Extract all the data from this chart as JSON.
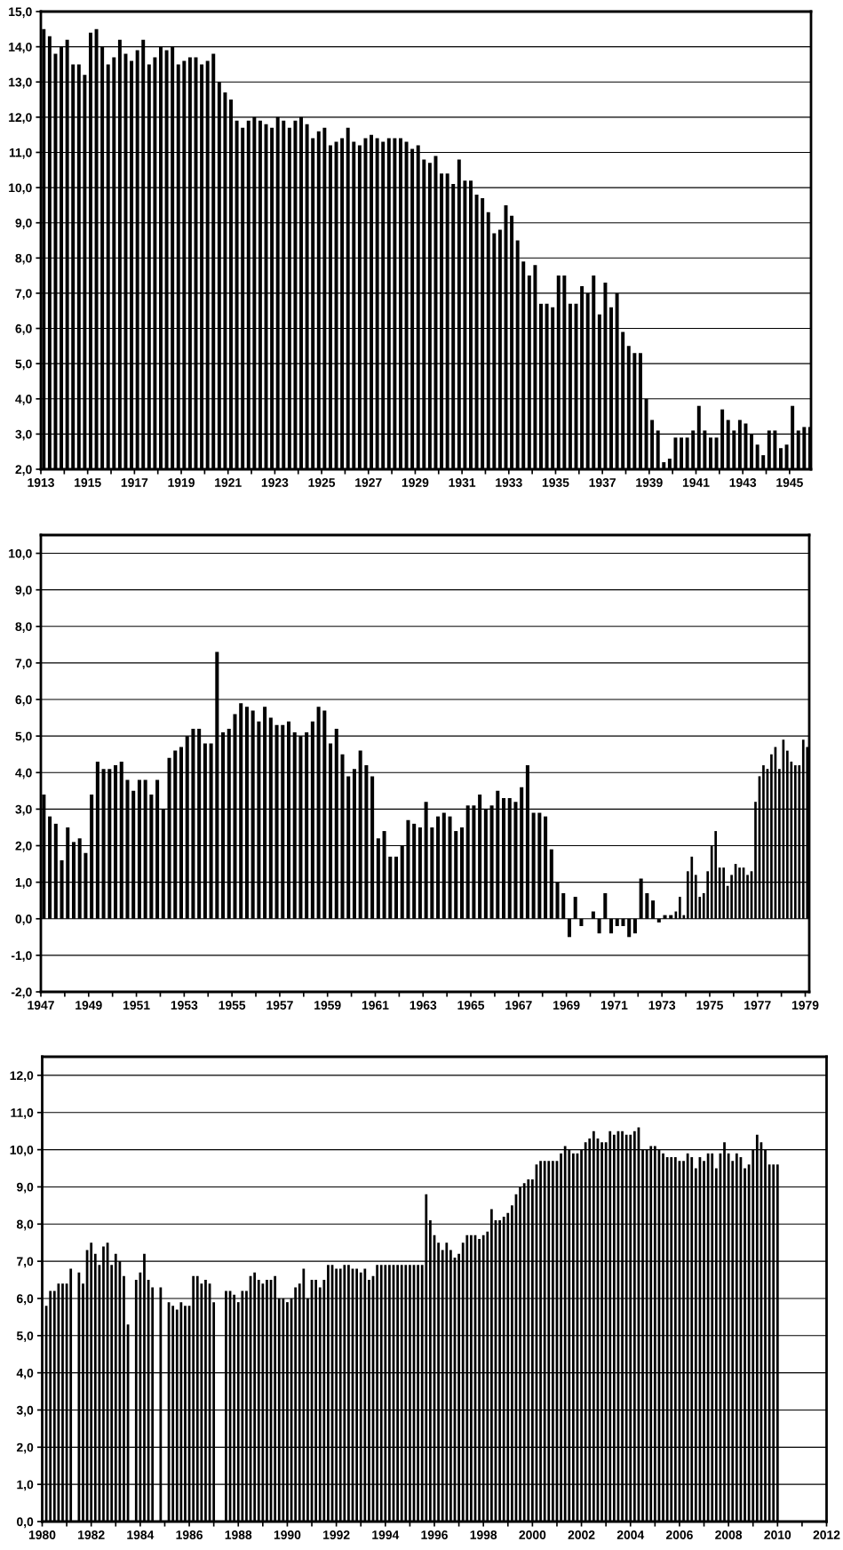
{
  "chart_data": [
    {
      "type": "bar",
      "grid": "y",
      "xlim": [
        "1913",
        "1945-12"
      ],
      "ylim": [
        2,
        15
      ],
      "xticks": [
        "1913",
        {
          "value": "1914",
          "label": null
        },
        "1915",
        {
          "value": "1916",
          "label": null
        },
        "1917",
        {
          "value": "1918",
          "label": null
        },
        "1919",
        {
          "value": "1920",
          "label": null
        },
        "1921",
        {
          "value": "1922",
          "label": null
        },
        "1923",
        {
          "value": "1924",
          "label": null
        },
        "1925",
        {
          "value": "1926",
          "label": null
        },
        "1927",
        {
          "value": "1928",
          "label": null
        },
        "1929",
        {
          "value": "1930",
          "label": null
        },
        "1931",
        {
          "value": "1932",
          "label": null
        },
        "1933",
        {
          "value": "1934",
          "label": null
        },
        "1935",
        {
          "value": "1936",
          "label": null
        },
        "1937",
        {
          "value": "1938",
          "label": null
        },
        "1939",
        {
          "value": "1940",
          "label": null
        },
        "1941",
        {
          "value": "1942",
          "label": null
        },
        "1943",
        {
          "value": "1944",
          "label": null
        },
        "1945"
      ],
      "yticks": [
        {
          "value": 2,
          "label": "2,0"
        },
        {
          "value": 3,
          "label": "3,0"
        },
        {
          "value": 4,
          "label": "4,0"
        },
        {
          "value": 5,
          "label": "5,0"
        },
        {
          "value": 6,
          "label": "6,0"
        },
        {
          "value": 7,
          "label": "7,0"
        },
        {
          "value": 8,
          "label": "8,0"
        },
        {
          "value": 9,
          "label": "9,0"
        },
        {
          "value": 10,
          "label": "10,0"
        },
        {
          "value": 11,
          "label": "11,0"
        },
        {
          "value": 12,
          "label": "12,0"
        },
        {
          "value": 13,
          "label": "13,0"
        },
        {
          "value": 14,
          "label": "14,0"
        },
        {
          "value": 15,
          "label": "15,0"
        }
      ],
      "series": [
        {
          "color": "#000000",
          "x": [
            "1913-01",
            "1913-04",
            "1913-07",
            "1913-10",
            "1914-01",
            "1914-04",
            "1914-07",
            "1914-10",
            "1915-01",
            "1915-04",
            "1915-07",
            "1915-10",
            "1916-01",
            "1916-04",
            "1916-07",
            "1916-10",
            "1917-01",
            "1917-04",
            "1917-07",
            "1917-10",
            "1918-01",
            "1918-04",
            "1918-07",
            "1918-10",
            "1919-01",
            "1919-04",
            "1919-07",
            "1919-10",
            "1920-01",
            "1920-04",
            "1920-07",
            "1920-10",
            "1921-01",
            "1921-04",
            "1921-07",
            "1921-10",
            "1922-01",
            "1922-04",
            "1922-07",
            "1922-10",
            "1923-01",
            "1923-04",
            "1923-07",
            "1923-10",
            "1924-01",
            "1924-04",
            "1924-07",
            "1924-10",
            "1925-01",
            "1925-04",
            "1925-07",
            "1925-10",
            "1926-01",
            "1926-04",
            "1926-07",
            "1926-10",
            "1927-01",
            "1927-04",
            "1927-07",
            "1927-10",
            "1928-01",
            "1928-04",
            "1928-07",
            "1928-10",
            "1929-01",
            "1929-04",
            "1929-07",
            "1929-10",
            "1930-01",
            "1930-04",
            "1930-07",
            "1930-10",
            "1931-01",
            "1931-04",
            "1931-07",
            "1931-10",
            "1932-01",
            "1932-04",
            "1932-07",
            "1932-10",
            "1933-01",
            "1933-04",
            "1933-07",
            "1933-10",
            "1934-01",
            "1934-04",
            "1934-07",
            "1934-10",
            "1935-01",
            "1935-04",
            "1935-07",
            "1935-10",
            "1936-01",
            "1936-04",
            "1936-07",
            "1936-10",
            "1937-01",
            "1937-04",
            "1937-07",
            "1937-10",
            "1938-01",
            "1938-04",
            "1938-07",
            "1938-10",
            "1939-01",
            "1939-04",
            "1939-07",
            "1939-10",
            "1940-01",
            "1940-04",
            "1940-07",
            "1940-10",
            "1941-01",
            "1941-04",
            "1941-07",
            "1941-10",
            "1942-01",
            "1942-04",
            "1942-07",
            "1942-10",
            "1943-01",
            "1943-04",
            "1943-07",
            "1943-10",
            "1944-01",
            "1944-04",
            "1944-07",
            "1944-10",
            "1945-01",
            "1945-04",
            "1945-07",
            "1945-10"
          ],
          "values": [
            14.5,
            14.3,
            13.8,
            14.0,
            14.2,
            13.5,
            13.5,
            13.2,
            14.4,
            14.5,
            14.0,
            13.5,
            13.7,
            14.2,
            13.8,
            13.6,
            13.9,
            14.2,
            13.5,
            13.7,
            14.0,
            13.9,
            14.0,
            13.5,
            13.6,
            13.7,
            13.7,
            13.5,
            13.6,
            13.8,
            13.0,
            12.7,
            12.5,
            11.9,
            11.7,
            11.9,
            12.0,
            11.9,
            11.8,
            11.7,
            12.0,
            11.9,
            11.7,
            11.9,
            12.0,
            11.8,
            11.4,
            11.6,
            11.7,
            11.2,
            11.3,
            11.4,
            11.7,
            11.3,
            11.2,
            11.4,
            11.5,
            11.4,
            11.3,
            11.4,
            11.4,
            11.4,
            11.3,
            11.1,
            11.2,
            10.8,
            10.7,
            10.9,
            10.4,
            10.4,
            10.1,
            10.8,
            10.2,
            10.2,
            9.8,
            9.7,
            9.3,
            8.7,
            8.8,
            9.5,
            9.2,
            8.5,
            7.9,
            7.5,
            7.8,
            6.7,
            6.7,
            6.6,
            7.5,
            7.5,
            6.7,
            6.7,
            7.2,
            7.0,
            7.5,
            6.4,
            7.3,
            6.6,
            7.0,
            5.9,
            5.5,
            5.3,
            5.3,
            4.0,
            3.4,
            3.1,
            2.2,
            2.3,
            2.9,
            2.9,
            2.9,
            3.1,
            3.8,
            3.1,
            2.9,
            2.9,
            3.7,
            3.4,
            3.1,
            3.4,
            3.3,
            3.0,
            2.7,
            2.4,
            3.1,
            3.1,
            2.6,
            2.7,
            3.8,
            3.1,
            3.2,
            3.2
          ]
        }
      ]
    },
    {
      "type": "bar",
      "grid": "y",
      "xlim": [
        "1947",
        "1979-03"
      ],
      "ylim": [
        -2,
        10.5
      ],
      "xticks": [
        "1947",
        {
          "value": "1948",
          "label": null
        },
        "1949",
        {
          "value": "1950",
          "label": null
        },
        "1951",
        {
          "value": "1952",
          "label": null
        },
        "1953",
        {
          "value": "1954",
          "label": null
        },
        "1955",
        {
          "value": "1956",
          "label": null
        },
        "1957",
        {
          "value": "1958",
          "label": null
        },
        "1959",
        {
          "value": "1960",
          "label": null
        },
        "1961",
        {
          "value": "1962",
          "label": null
        },
        "1963",
        {
          "value": "1964",
          "label": null
        },
        "1965",
        {
          "value": "1966",
          "label": null
        },
        "1967",
        {
          "value": "1968",
          "label": null
        },
        "1969",
        {
          "value": "1970",
          "label": null
        },
        "1971",
        {
          "value": "1972",
          "label": null
        },
        "1973",
        {
          "value": "1974",
          "label": null
        },
        "1975",
        {
          "value": "1976",
          "label": null
        },
        "1977",
        {
          "value": "1978",
          "label": null
        },
        "1979"
      ],
      "yticks": [
        {
          "value": -2,
          "label": "-2,0"
        },
        {
          "value": -1,
          "label": "-1,0"
        },
        {
          "value": 0,
          "label": "0,0"
        },
        {
          "value": 1,
          "label": "1,0"
        },
        {
          "value": 2,
          "label": "2,0"
        },
        {
          "value": 3,
          "label": "3,0"
        },
        {
          "value": 4,
          "label": "4,0"
        },
        {
          "value": 5,
          "label": "5,0"
        },
        {
          "value": 6,
          "label": "6,0"
        },
        {
          "value": 7,
          "label": "7,0"
        },
        {
          "value": 8,
          "label": "8,0"
        },
        {
          "value": 9,
          "label": "9,0"
        },
        {
          "value": 10,
          "label": "10,0"
        }
      ],
      "series": [
        {
          "color": "#000000",
          "x": [
            "1947-01",
            "1947-04",
            "1947-07",
            "1947-10",
            "1948-01",
            "1948-04",
            "1948-07",
            "1948-10",
            "1949-01",
            "1949-04",
            "1949-07",
            "1949-10",
            "1950-01",
            "1950-04",
            "1950-07",
            "1950-10",
            "1951-01",
            "1951-04",
            "1951-07",
            "1951-10",
            "1952-01",
            "1952-04",
            "1952-07",
            "1952-10",
            "1953-01",
            "1953-04",
            "1953-07",
            "1953-10",
            "1954-01",
            "1954-04",
            "1954-07",
            "1954-10",
            "1955-01",
            "1955-04",
            "1955-07",
            "1955-10",
            "1956-01",
            "1956-04",
            "1956-07",
            "1956-10",
            "1957-01",
            "1957-04",
            "1957-07",
            "1957-10",
            "1958-01",
            "1958-04",
            "1958-07",
            "1958-10",
            "1959-01",
            "1959-04",
            "1959-07",
            "1959-10",
            "1960-01",
            "1960-04",
            "1960-07",
            "1960-10",
            "1961-01",
            "1961-04",
            "1961-07",
            "1961-10",
            "1962-01",
            "1962-04",
            "1962-07",
            "1962-10",
            "1963-01",
            "1963-04",
            "1963-07",
            "1963-10",
            "1964-01",
            "1964-04",
            "1964-07",
            "1964-10",
            "1965-01",
            "1965-04",
            "1965-07",
            "1965-10",
            "1966-01",
            "1966-04",
            "1966-07",
            "1966-10",
            "1967-01",
            "1967-04",
            "1967-07",
            "1967-10",
            "1968-01",
            "1968-04",
            "1968-07",
            "1968-10",
            "1969-01",
            "1969-04",
            "1969-07",
            "1969-10",
            "1970-01",
            "1970-04",
            "1970-07",
            "1970-10",
            "1971-01",
            "1971-04",
            "1971-07",
            "1971-10",
            "1972-01",
            "1972-04",
            "1972-07",
            "1972-10",
            "1973-01",
            "1973-04",
            "1973-07",
            "1973-09",
            "1973-11",
            "1974-01",
            "1974-03",
            "1974-05",
            "1974-07",
            "1974-09",
            "1974-11",
            "1975-01",
            "1975-03",
            "1975-05",
            "1975-07",
            "1975-09",
            "1975-11",
            "1976-01",
            "1976-03",
            "1976-05",
            "1976-07",
            "1976-09",
            "1976-11",
            "1977-01",
            "1977-03",
            "1977-05",
            "1977-07",
            "1977-09",
            "1977-11",
            "1978-01",
            "1978-03",
            "1978-05",
            "1978-07",
            "1978-09",
            "1978-11",
            "1979-01"
          ],
          "values": [
            3.4,
            2.8,
            2.6,
            1.6,
            2.5,
            2.1,
            2.2,
            1.8,
            3.4,
            4.3,
            4.1,
            4.1,
            4.2,
            4.3,
            3.8,
            3.5,
            3.8,
            3.8,
            3.4,
            3.8,
            3.0,
            4.4,
            4.6,
            4.7,
            5.0,
            5.2,
            5.2,
            4.8,
            4.8,
            7.3,
            5.1,
            5.2,
            5.6,
            5.9,
            5.8,
            5.7,
            5.4,
            5.8,
            5.5,
            5.3,
            5.3,
            5.4,
            5.1,
            5.0,
            5.1,
            5.4,
            5.8,
            5.7,
            4.8,
            5.2,
            4.5,
            3.9,
            4.1,
            4.6,
            4.2,
            3.9,
            2.2,
            2.4,
            1.7,
            1.7,
            2.0,
            2.7,
            2.6,
            2.5,
            3.2,
            2.5,
            2.8,
            2.9,
            2.8,
            2.4,
            2.5,
            3.1,
            3.1,
            3.4,
            3.0,
            3.1,
            3.5,
            3.3,
            3.3,
            3.2,
            3.6,
            4.2,
            2.9,
            2.9,
            2.8,
            1.9,
            1.0,
            0.7,
            -0.5,
            0.6,
            -0.2,
            0.0,
            0.2,
            -0.4,
            0.7,
            -0.4,
            -0.2,
            -0.2,
            -0.5,
            -0.4,
            1.1,
            0.7,
            0.5,
            -0.1,
            0.1,
            0.1,
            0.2,
            0.6,
            0.1,
            1.3,
            1.7,
            1.2,
            0.6,
            0.7,
            1.3,
            2.0,
            2.4,
            1.4,
            1.4,
            0.9,
            1.2,
            1.5,
            1.4,
            1.4,
            1.2,
            1.3,
            3.2,
            3.9,
            4.2,
            4.1,
            4.5,
            4.7,
            4.1,
            4.9,
            4.6,
            4.3,
            4.2,
            4.2,
            4.9,
            4.7
          ]
        }
      ]
    },
    {
      "type": "bar",
      "grid": "y",
      "xlim": [
        "1980",
        "2012"
      ],
      "ylim": [
        0,
        12.5
      ],
      "xticks": [
        "1980",
        {
          "value": "1981",
          "label": null
        },
        "1982",
        {
          "value": "1983",
          "label": null
        },
        "1984",
        {
          "value": "1985",
          "label": null
        },
        "1986",
        {
          "value": "1987",
          "label": null
        },
        "1988",
        {
          "value": "1989",
          "label": null
        },
        "1990",
        {
          "value": "1991",
          "label": null
        },
        "1992",
        {
          "value": "1993",
          "label": null
        },
        "1994",
        {
          "value": "1995",
          "label": null
        },
        "1996",
        {
          "value": "1997",
          "label": null
        },
        "1998",
        {
          "value": "1999",
          "label": null
        },
        "2000",
        {
          "value": "2001",
          "label": null
        },
        "2002",
        {
          "value": "2003",
          "label": null
        },
        "2004",
        {
          "value": "2005",
          "label": null
        },
        "2006",
        {
          "value": "2007",
          "label": null
        },
        "2008",
        {
          "value": "2009",
          "label": null
        },
        "2010",
        {
          "value": "2011",
          "label": null
        },
        "2012"
      ],
      "yticks": [
        {
          "value": 0,
          "label": "0,0"
        },
        {
          "value": 1,
          "label": "1,0"
        },
        {
          "value": 2,
          "label": "2,0"
        },
        {
          "value": 3,
          "label": "3,0"
        },
        {
          "value": 4,
          "label": "4,0"
        },
        {
          "value": 5,
          "label": "5,0"
        },
        {
          "value": 6,
          "label": "6,0"
        },
        {
          "value": 7,
          "label": "7,0"
        },
        {
          "value": 8,
          "label": "8,0"
        },
        {
          "value": 9,
          "label": "9,0"
        },
        {
          "value": 10,
          "label": "10,0"
        },
        {
          "value": 11,
          "label": "11,0"
        },
        {
          "value": 12,
          "label": "12,0"
        }
      ],
      "series": [
        {
          "color": "#000000",
          "x": [
            "1980-02",
            "1980-04",
            "1980-06",
            "1980-08",
            "1980-10",
            "1980-12",
            "1981-02",
            "1981-04",
            "1981-06",
            "1981-08",
            "1981-10",
            "1981-12",
            "1982-02",
            "1982-04",
            "1982-06",
            "1982-08",
            "1982-10",
            "1982-12",
            "1983-02",
            "1983-04",
            "1983-06",
            "1983-08",
            "1983-10",
            "1983-12",
            "1984-02",
            "1984-04",
            "1984-06",
            "1984-08",
            "1984-10",
            "1984-12",
            "1985-02",
            "1985-04",
            "1985-06",
            "1985-08",
            "1985-10",
            "1985-12",
            "1986-02",
            "1986-04",
            "1986-06",
            "1986-08",
            "1986-10",
            "1986-12",
            "1987-02",
            "1987-04",
            "1987-06",
            "1987-08",
            "1987-10",
            "1987-12",
            "1988-02",
            "1988-04",
            "1988-06",
            "1988-08",
            "1988-10",
            "1988-12",
            "1989-02",
            "1989-04",
            "1989-06",
            "1989-08",
            "1989-10",
            "1989-12",
            "1990-02",
            "1990-04",
            "1990-06",
            "1990-08",
            "1990-10",
            "1990-12",
            "1991-02",
            "1991-04",
            "1991-06",
            "1991-08",
            "1991-10",
            "1991-12",
            "1992-02",
            "1992-04",
            "1992-06",
            "1992-08",
            "1992-10",
            "1992-12",
            "1993-02",
            "1993-04",
            "1993-06",
            "1993-08",
            "1993-10",
            "1993-12",
            "1994-02",
            "1994-04",
            "1994-06",
            "1994-08",
            "1994-10",
            "1994-12",
            "1995-02",
            "1995-04",
            "1995-06",
            "1995-08",
            "1995-10",
            "1995-12",
            "1996-02",
            "1996-04",
            "1996-06",
            "1996-08",
            "1996-10",
            "1996-12",
            "1997-02",
            "1997-04",
            "1997-06",
            "1997-08",
            "1997-10",
            "1997-12",
            "1998-02",
            "1998-04",
            "1998-06",
            "1998-08",
            "1998-10",
            "1998-12",
            "1999-02",
            "1999-04",
            "1999-06",
            "1999-08",
            "1999-10",
            "1999-12",
            "2000-02",
            "2000-04",
            "2000-06",
            "2000-08",
            "2000-10",
            "2000-12",
            "2001-02",
            "2001-04",
            "2001-06",
            "2001-08",
            "2001-10",
            "2001-12",
            "2002-02",
            "2002-04",
            "2002-06",
            "2002-08",
            "2002-10",
            "2002-12",
            "2003-02",
            "2003-04",
            "2003-06",
            "2003-08",
            "2003-10",
            "2003-12",
            "2004-02",
            "2004-04",
            "2004-06",
            "2004-08",
            "2004-10",
            "2004-12",
            "2005-02",
            "2005-04",
            "2005-06",
            "2005-08",
            "2005-10",
            "2005-12",
            "2006-02",
            "2006-04",
            "2006-06",
            "2006-08",
            "2006-10",
            "2006-12",
            "2007-02",
            "2007-04",
            "2007-06",
            "2007-08",
            "2007-10",
            "2007-12",
            "2008-02",
            "2008-04",
            "2008-06",
            "2008-08",
            "2008-10",
            "2008-12",
            "2009-02",
            "2009-04",
            "2009-06",
            "2009-08",
            "2009-10",
            "2009-12"
          ],
          "values": [
            5.8,
            6.2,
            6.2,
            6.4,
            6.4,
            6.4,
            6.8,
            null,
            6.7,
            6.4,
            7.3,
            7.5,
            7.2,
            6.9,
            7.4,
            7.5,
            6.9,
            7.2,
            7.0,
            6.6,
            5.3,
            null,
            6.5,
            6.7,
            7.2,
            6.5,
            6.3,
            null,
            6.3,
            null,
            5.9,
            5.8,
            5.7,
            5.9,
            5.8,
            5.8,
            6.6,
            6.6,
            6.4,
            6.5,
            6.4,
            5.9,
            null,
            null,
            6.2,
            6.2,
            6.1,
            5.9,
            6.2,
            6.2,
            6.6,
            6.7,
            6.5,
            6.4,
            6.5,
            6.5,
            6.6,
            6.0,
            6.0,
            5.9,
            6.0,
            6.3,
            6.4,
            6.8,
            6.0,
            6.5,
            6.5,
            6.3,
            6.5,
            6.9,
            6.9,
            6.8,
            6.8,
            6.9,
            6.9,
            6.8,
            6.8,
            6.7,
            6.8,
            6.5,
            6.6,
            6.9,
            6.9,
            6.9,
            6.9,
            6.9,
            6.9,
            6.9,
            6.9,
            6.9,
            6.9,
            6.9,
            6.9,
            8.8,
            8.1,
            7.7,
            7.5,
            7.3,
            7.5,
            7.3,
            7.1,
            7.2,
            7.5,
            7.7,
            7.7,
            7.7,
            7.6,
            7.7,
            7.8,
            8.4,
            8.1,
            8.1,
            8.2,
            8.3,
            8.5,
            8.8,
            9.0,
            9.1,
            9.2,
            9.2,
            9.6,
            9.7,
            9.7,
            9.7,
            9.7,
            9.7,
            9.9,
            10.1,
            10.0,
            9.9,
            9.9,
            10.0,
            10.2,
            10.3,
            10.5,
            10.3,
            10.2,
            10.2,
            10.5,
            10.4,
            10.5,
            10.5,
            10.4,
            10.4,
            10.5,
            10.6,
            10.0,
            10.0,
            10.1,
            10.1,
            10.0,
            9.9,
            9.8,
            9.8,
            9.8,
            9.7,
            9.7,
            9.9,
            9.8,
            9.5,
            9.8,
            9.7,
            9.9,
            9.9,
            9.5,
            9.9,
            10.2,
            9.9,
            9.7,
            9.9,
            9.8,
            9.5,
            9.6,
            10.0,
            10.4,
            10.2,
            10.0,
            9.6,
            9.6,
            9.6
          ]
        }
      ]
    }
  ]
}
